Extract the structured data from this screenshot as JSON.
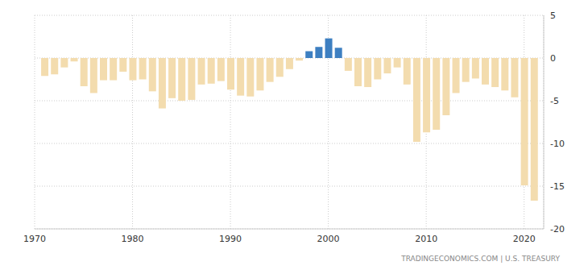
{
  "chart_data": {
    "type": "bar",
    "x": [
      1971,
      1972,
      1973,
      1974,
      1975,
      1976,
      1977,
      1978,
      1979,
      1980,
      1981,
      1982,
      1983,
      1984,
      1985,
      1986,
      1987,
      1988,
      1989,
      1990,
      1991,
      1992,
      1993,
      1994,
      1995,
      1996,
      1997,
      1998,
      1999,
      2000,
      2001,
      2002,
      2003,
      2004,
      2005,
      2006,
      2007,
      2008,
      2009,
      2010,
      2011,
      2012,
      2013,
      2014,
      2015,
      2016,
      2017,
      2018,
      2019,
      2020,
      2021
    ],
    "values": [
      -2.1,
      -1.9,
      -1.1,
      -0.4,
      -3.3,
      -4.1,
      -2.6,
      -2.6,
      -1.6,
      -2.6,
      -2.5,
      -3.9,
      -5.9,
      -4.7,
      -5.0,
      -4.9,
      -3.1,
      -3.0,
      -2.7,
      -3.7,
      -4.4,
      -4.5,
      -3.8,
      -2.8,
      -2.2,
      -1.3,
      -0.3,
      0.8,
      1.3,
      2.3,
      1.2,
      -1.5,
      -3.3,
      -3.4,
      -2.5,
      -1.8,
      -1.1,
      -3.1,
      -9.8,
      -8.7,
      -8.4,
      -6.7,
      -4.1,
      -2.8,
      -2.4,
      -3.1,
      -3.4,
      -3.8,
      -4.6,
      -14.9,
      -16.7
    ],
    "colors": [
      "#f3dcae",
      "#f3dcae",
      "#f3dcae",
      "#f3dcae",
      "#f3dcae",
      "#f3dcae",
      "#f3dcae",
      "#f3dcae",
      "#f3dcae",
      "#f3dcae",
      "#f3dcae",
      "#f3dcae",
      "#f3dcae",
      "#f3dcae",
      "#f3dcae",
      "#f3dcae",
      "#f3dcae",
      "#f3dcae",
      "#f3dcae",
      "#f3dcae",
      "#f3dcae",
      "#f3dcae",
      "#f3dcae",
      "#f3dcae",
      "#f3dcae",
      "#f3dcae",
      "#f3dcae",
      "#3d7fc1",
      "#3d7fc1",
      "#3d7fc1",
      "#3d7fc1",
      "#f3dcae",
      "#f3dcae",
      "#f3dcae",
      "#f3dcae",
      "#f3dcae",
      "#f3dcae",
      "#f3dcae",
      "#f3dcae",
      "#f3dcae",
      "#f3dcae",
      "#f3dcae",
      "#f3dcae",
      "#f3dcae",
      "#f3dcae",
      "#f3dcae",
      "#f3dcae",
      "#f3dcae",
      "#f3dcae",
      "#f3dcae",
      "#f3dcae"
    ],
    "xlim": [
      1970,
      2022
    ],
    "xticks": [
      1970,
      1980,
      1990,
      2000,
      2010,
      2020
    ],
    "ylim": [
      -20,
      5
    ],
    "yticks": [
      5,
      0,
      -5,
      -10,
      -15,
      -20
    ],
    "grid": true,
    "source": "TRADINGECONOMICS.COM | U.S. TREASURY"
  }
}
